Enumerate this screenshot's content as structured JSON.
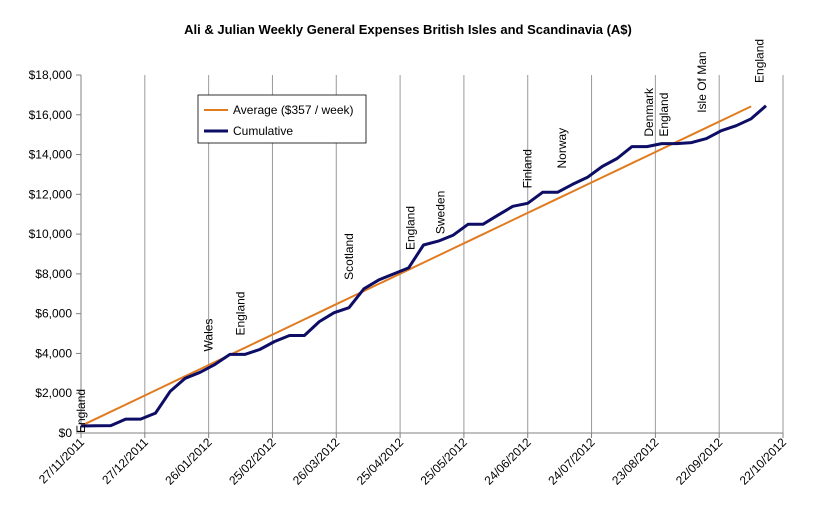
{
  "chart_data": {
    "type": "line",
    "title": "Ali & Julian Weekly General Expenses British Isles and Scandinavia  (A$)",
    "xlabel": "",
    "ylabel": "",
    "ylim": [
      0,
      18000
    ],
    "y_ticks": [
      0,
      2000,
      4000,
      6000,
      8000,
      10000,
      12000,
      14000,
      16000,
      18000
    ],
    "y_tick_labels": [
      "$0",
      "$2,000",
      "$4,000",
      "$6,000",
      "$8,000",
      "$10,000",
      "$12,000",
      "$14,000",
      "$16,000",
      "$18,000"
    ],
    "x_ticks": [
      "27/11/2011",
      "27/12/2011",
      "26/01/2012",
      "25/02/2012",
      "26/03/2012",
      "25/04/2012",
      "25/05/2012",
      "24/06/2012",
      "24/07/2012",
      "23/08/2012",
      "22/09/2012",
      "22/10/2012"
    ],
    "xlim": [
      "27/11/2011",
      "22/10/2012"
    ],
    "grid": "vertical",
    "legend": "top-left",
    "series": [
      {
        "name": "Average ($357 / week)",
        "color": "#E07B20",
        "points": [
          [
            "27/11/2011",
            357
          ],
          [
            "04/12/2011",
            714
          ],
          [
            "11/12/2011",
            1071
          ],
          [
            "18/12/2011",
            1428
          ],
          [
            "25/12/2011",
            1785
          ],
          [
            "01/01/2012",
            2142
          ],
          [
            "08/01/2012",
            2499
          ],
          [
            "15/01/2012",
            2856
          ],
          [
            "22/01/2012",
            3213
          ],
          [
            "29/01/2012",
            3570
          ],
          [
            "05/02/2012",
            3927
          ],
          [
            "12/02/2012",
            4284
          ],
          [
            "19/02/2012",
            4641
          ],
          [
            "26/02/2012",
            4998
          ],
          [
            "04/03/2012",
            5355
          ],
          [
            "11/03/2012",
            5712
          ],
          [
            "18/03/2012",
            6069
          ],
          [
            "25/03/2012",
            6426
          ],
          [
            "01/04/2012",
            6783
          ],
          [
            "08/04/2012",
            7140
          ],
          [
            "15/04/2012",
            7497
          ],
          [
            "22/04/2012",
            7854
          ],
          [
            "29/04/2012",
            8211
          ],
          [
            "06/05/2012",
            8568
          ],
          [
            "13/05/2012",
            8925
          ],
          [
            "20/05/2012",
            9282
          ],
          [
            "27/05/2012",
            9639
          ],
          [
            "03/06/2012",
            9996
          ],
          [
            "10/06/2012",
            10353
          ],
          [
            "17/06/2012",
            10710
          ],
          [
            "24/06/2012",
            11067
          ],
          [
            "01/07/2012",
            11424
          ],
          [
            "08/07/2012",
            11781
          ],
          [
            "15/07/2012",
            12138
          ],
          [
            "22/07/2012",
            12495
          ],
          [
            "29/07/2012",
            12852
          ],
          [
            "05/08/2012",
            13209
          ],
          [
            "12/08/2012",
            13566
          ],
          [
            "19/08/2012",
            13923
          ],
          [
            "26/08/2012",
            14280
          ],
          [
            "02/09/2012",
            14637
          ],
          [
            "09/09/2012",
            14994
          ],
          [
            "16/09/2012",
            15351
          ],
          [
            "23/09/2012",
            15708
          ],
          [
            "30/09/2012",
            16065
          ],
          [
            "07/10/2012",
            16422
          ]
        ]
      },
      {
        "name": "Cumulative",
        "color": "#0D0D66",
        "points": [
          [
            "27/11/2011",
            350
          ],
          [
            "04/12/2011",
            360
          ],
          [
            "11/12/2011",
            370
          ],
          [
            "18/12/2011",
            700
          ],
          [
            "25/12/2011",
            700
          ],
          [
            "01/01/2012",
            1000
          ],
          [
            "08/01/2012",
            2100
          ],
          [
            "15/01/2012",
            2750
          ],
          [
            "22/01/2012",
            3050
          ],
          [
            "29/01/2012",
            3450
          ],
          [
            "05/02/2012",
            3950
          ],
          [
            "12/02/2012",
            3950
          ],
          [
            "19/02/2012",
            4200
          ],
          [
            "26/02/2012",
            4600
          ],
          [
            "04/03/2012",
            4900
          ],
          [
            "11/03/2012",
            4900
          ],
          [
            "18/03/2012",
            5600
          ],
          [
            "25/03/2012",
            6050
          ],
          [
            "01/04/2012",
            6300
          ],
          [
            "08/04/2012",
            7250
          ],
          [
            "15/04/2012",
            7700
          ],
          [
            "22/04/2012",
            8000
          ],
          [
            "29/04/2012",
            8300
          ],
          [
            "06/05/2012",
            9450
          ],
          [
            "13/05/2012",
            9650
          ],
          [
            "20/05/2012",
            9950
          ],
          [
            "27/05/2012",
            10500
          ],
          [
            "03/06/2012",
            10500
          ],
          [
            "10/06/2012",
            10950
          ],
          [
            "17/06/2012",
            11400
          ],
          [
            "24/06/2012",
            11550
          ],
          [
            "01/07/2012",
            12100
          ],
          [
            "08/07/2012",
            12100
          ],
          [
            "15/07/2012",
            12500
          ],
          [
            "22/07/2012",
            12850
          ],
          [
            "29/07/2012",
            13400
          ],
          [
            "05/08/2012",
            13800
          ],
          [
            "12/08/2012",
            14400
          ],
          [
            "19/08/2012",
            14400
          ],
          [
            "26/08/2012",
            14550
          ],
          [
            "02/09/2012",
            14550
          ],
          [
            "09/09/2012",
            14600
          ],
          [
            "16/09/2012",
            14800
          ],
          [
            "23/09/2012",
            15200
          ],
          [
            "30/09/2012",
            15450
          ],
          [
            "07/10/2012",
            15800
          ],
          [
            "14/10/2012",
            16450
          ]
        ]
      }
    ],
    "annotations": [
      {
        "label": "England",
        "date": "27/11/2011",
        "value": 0
      },
      {
        "label": "Wales",
        "date": "26/01/2012",
        "value": 4100
      },
      {
        "label": "England",
        "date": "10/02/2012",
        "value": 4900
      },
      {
        "label": "Scotland",
        "date": "01/04/2012",
        "value": 7700
      },
      {
        "label": "England",
        "date": "30/04/2012",
        "value": 9200
      },
      {
        "label": "Sweden",
        "date": "14/05/2012",
        "value": 10000
      },
      {
        "label": "Finland",
        "date": "24/06/2012",
        "value": 12300
      },
      {
        "label": "Norway",
        "date": "10/07/2012",
        "value": 13300
      },
      {
        "label": "Denmark",
        "date": "20/08/2012",
        "value": 14900
      },
      {
        "label": "England",
        "date": "27/08/2012",
        "value": 14900
      },
      {
        "label": "Isle Of Man",
        "date": "14/09/2012",
        "value": 16100
      },
      {
        "label": "England",
        "date": "11/10/2012",
        "value": 17600
      }
    ]
  }
}
